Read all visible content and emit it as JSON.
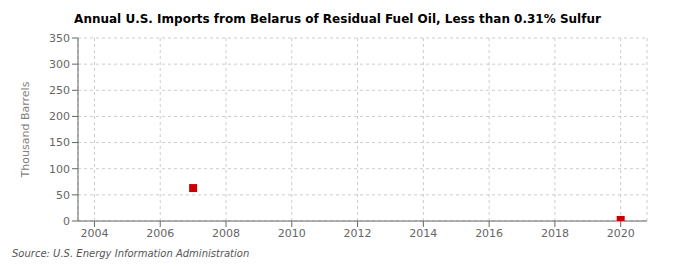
{
  "chart_data": {
    "type": "scatter",
    "title": "Annual U.S. Imports from Belarus of Residual Fuel Oil, Less than 0.31% Sulfur",
    "ylabel": "Thousand Barrels",
    "annotations": [
      "Source: U.S. Energy Information Administration"
    ],
    "x": [
      2007,
      2020
    ],
    "values": [
      63,
      2
    ],
    "color": "#cc0000",
    "marker": "square",
    "xlim": [
      2003.5,
      2020.8
    ],
    "ylim": [
      0,
      350
    ],
    "xticks": [
      2004,
      2006,
      2008,
      2010,
      2012,
      2014,
      2016,
      2018,
      2020
    ],
    "yticks": [
      0,
      50,
      100,
      150,
      200,
      250,
      300,
      350
    ],
    "grid": true
  }
}
